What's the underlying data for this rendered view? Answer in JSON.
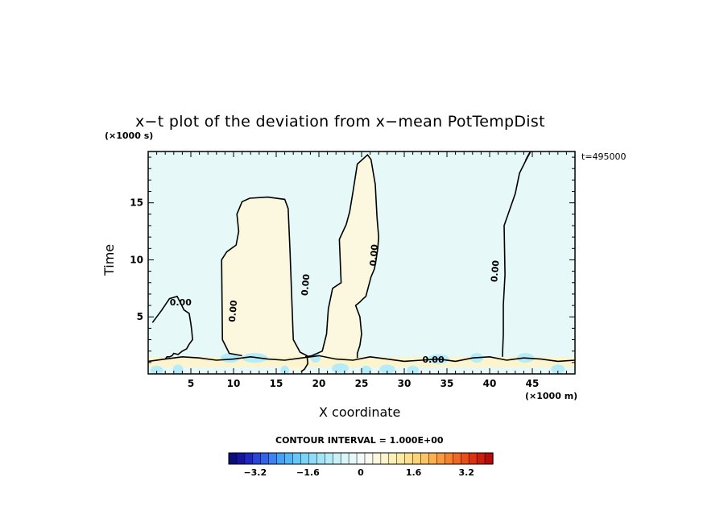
{
  "chart_data": {
    "type": "heatmap",
    "title": "x−t plot of the deviation from x−mean PotTempDist",
    "xlabel": "X coordinate",
    "ylabel": "Time",
    "x_unit": "(×1000 m)",
    "y_unit": "(×1000 s)",
    "time_label": "t=495000",
    "xlim": [
      0,
      50
    ],
    "ylim": [
      0,
      19.5
    ],
    "x_ticks": [
      5,
      10,
      15,
      20,
      25,
      30,
      35,
      40,
      45
    ],
    "y_ticks": [
      5,
      10,
      15
    ],
    "contour_label": "0.00",
    "contour_interval_label": "CONTOUR INTERVAL = 1.000E+00",
    "colorbar": {
      "min": -4,
      "max": 4,
      "ticks": [
        "−3.2",
        "−1.6",
        "0",
        "1.6",
        "3.2"
      ],
      "colors": [
        "#0c0c7a",
        "#1414a0",
        "#1e28c0",
        "#2a46d8",
        "#3464e6",
        "#3c82f0",
        "#46a0f4",
        "#54b6f6",
        "#66c8f8",
        "#7ad4f8",
        "#8edcf8",
        "#a2e4f8",
        "#b6ecf8",
        "#c8f2f8",
        "#d8f6f8",
        "#e6f8f8",
        "#f2fafa",
        "#fafaf0",
        "#fcf8e0",
        "#fcf4cc",
        "#fcf0b8",
        "#fceaa2",
        "#fce08c",
        "#fcd478",
        "#fcc464",
        "#fcb050",
        "#fa9a3e",
        "#f6822e",
        "#f06822",
        "#e84e18",
        "#dc3412",
        "#cc1e0e",
        "#b40c0a"
      ]
    },
    "contours": [
      {
        "value": 0,
        "x": [
          0.5,
          1.5,
          2.5,
          3.4,
          3.8,
          4.2,
          4.8,
          5.0,
          5.1,
          5.2,
          4.8,
          4.5,
          4.0,
          3.5,
          3.0,
          2.8,
          2.5,
          2.2,
          2.0
        ],
        "y": [
          4.5,
          5.5,
          6.6,
          6.8,
          6.2,
          5.6,
          5.3,
          4.4,
          3.8,
          3.0,
          2.6,
          2.2,
          2.0,
          1.7,
          1.8,
          1.6,
          1.5,
          1.5,
          1.3
        ]
      },
      {
        "value": 0,
        "x": [
          11,
          9.5,
          8.7,
          8.6,
          9.2,
          10.3,
          10.6,
          10.4,
          11.0,
          11.9,
          14.0,
          16.0,
          16.4,
          16.6,
          16.8,
          17.0,
          17.8,
          18.6,
          18.7,
          18.3,
          17.9
        ],
        "y": [
          1.6,
          1.8,
          3.0,
          10.0,
          10.7,
          11.3,
          12.5,
          14.0,
          15.1,
          15.4,
          15.5,
          15.3,
          14.5,
          11.0,
          7.0,
          3.0,
          1.9,
          1.6,
          0.9,
          0.4,
          0.2
        ]
      },
      {
        "value": 0,
        "x": [
          18.4,
          19.2,
          20.4,
          20.9,
          21.1,
          21.6,
          22.6,
          22.4,
          23.2,
          23.6,
          24.0,
          24.5,
          25.7,
          26.1,
          26.6,
          26.8,
          27.0,
          26.9,
          26.7,
          26.5,
          26.1,
          25.5,
          25.2,
          24.8,
          24.3,
          24.8,
          25.0,
          24.8,
          24.5,
          24.5
        ],
        "y": [
          1.5,
          1.6,
          2.0,
          3.5,
          5.7,
          7.5,
          8.0,
          11.8,
          13.1,
          14.2,
          16.0,
          18.4,
          19.2,
          18.8,
          16.6,
          13.8,
          12.0,
          11.0,
          10.0,
          9.2,
          8.5,
          6.8,
          6.6,
          6.3,
          6.0,
          5.0,
          3.5,
          2.5,
          1.8,
          1.4
        ]
      },
      {
        "value": 0,
        "x": [
          41.5,
          41.6,
          41.6,
          41.8,
          41.7,
          43.0,
          43.5,
          44.3,
          44.8,
          44.7,
          44.4,
          44.2
        ],
        "y": [
          1.5,
          3.5,
          6.0,
          8.7,
          13.0,
          15.8,
          17.6,
          18.8,
          19.5,
          19.4,
          19.0,
          18.7
        ]
      },
      {
        "value": 0,
        "x": [
          0,
          2,
          4,
          6,
          8,
          10,
          12,
          14,
          16,
          18,
          20,
          22,
          24,
          26,
          28,
          30,
          32,
          34,
          36,
          38,
          40,
          42,
          44,
          46,
          48,
          50
        ],
        "y": [
          1.1,
          1.3,
          1.5,
          1.4,
          1.2,
          1.3,
          1.5,
          1.3,
          1.2,
          1.4,
          1.6,
          1.3,
          1.2,
          1.5,
          1.3,
          1.1,
          1.2,
          1.3,
          1.1,
          1.4,
          1.5,
          1.2,
          1.4,
          1.3,
          1.1,
          1.2
        ]
      }
    ],
    "label_positions": [
      {
        "x": 3.8,
        "y": 6.2,
        "rot": 0
      },
      {
        "x": 10.0,
        "y": 5.5,
        "rot": -85
      },
      {
        "x": 18.5,
        "y": 7.8,
        "rot": -85
      },
      {
        "x": 26.5,
        "y": 10.4,
        "rot": -85
      },
      {
        "x": 40.7,
        "y": 9.0,
        "rot": -85
      },
      {
        "x": 33.4,
        "y": 1.2,
        "rot": 0
      }
    ]
  }
}
